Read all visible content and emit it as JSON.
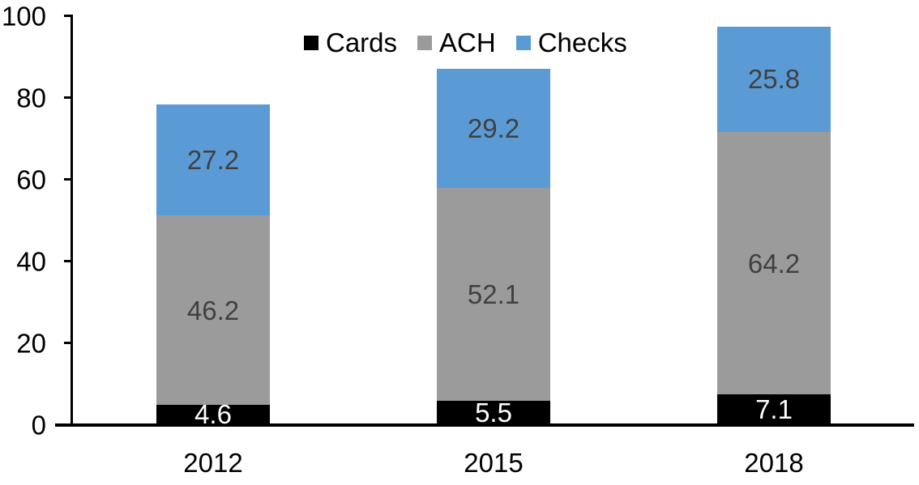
{
  "chart_data": {
    "type": "bar",
    "stacked": true,
    "title": "",
    "categories": [
      "2012",
      "2015",
      "2018"
    ],
    "series": [
      {
        "name": "Cards",
        "color": "#000000",
        "label_color": "#ffffff",
        "values": [
          4.6,
          5.5,
          7.1
        ]
      },
      {
        "name": "ACH",
        "color": "#9b9b9b",
        "label_color": "#404040",
        "values": [
          46.2,
          52.1,
          64.2
        ]
      },
      {
        "name": "Checks",
        "color": "#5b9bd5",
        "label_color": "#404040",
        "values": [
          27.2,
          29.2,
          25.8
        ]
      }
    ],
    "totals": [
      78.0,
      86.8,
      97.1
    ],
    "y_axis": {
      "ticks": [
        0,
        20,
        40,
        60,
        80,
        100
      ],
      "ylim": [
        0,
        100
      ]
    },
    "xlabel": "",
    "ylabel": "",
    "legend_position": "top-center",
    "grid": false,
    "axis_color": "#000000"
  }
}
